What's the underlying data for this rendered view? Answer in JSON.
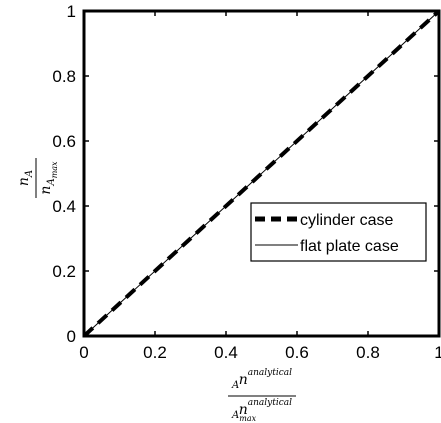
{
  "chart_data": {
    "type": "line",
    "title": "",
    "xlabel": {
      "numerator": "n",
      "numerator_sub": "A",
      "numerator_sup": "analytical",
      "denominator": "n",
      "denominator_sub": "A",
      "denominator_subsub": "max",
      "denominator_sup": "analytical"
    },
    "ylabel": {
      "numerator": "n",
      "numerator_sub": "A",
      "denominator": "n",
      "denominator_sub": "A",
      "denominator_subsub": "max"
    },
    "xlim": [
      0,
      1
    ],
    "ylim": [
      0,
      1
    ],
    "xticks": [
      "0",
      "0.2",
      "0.4",
      "0.6",
      "0.8",
      "1"
    ],
    "yticks": [
      "0",
      "0.2",
      "0.4",
      "0.6",
      "0.8",
      "1"
    ],
    "grid": false,
    "legend_position": "right",
    "series": [
      {
        "name": "cylinder case",
        "style": "dashed",
        "color": "#000000",
        "x": [
          0,
          1
        ],
        "y": [
          0,
          1
        ]
      },
      {
        "name": "flat plate case",
        "style": "solid",
        "color": "#000000",
        "x": [
          0,
          1
        ],
        "y": [
          0,
          1
        ]
      }
    ]
  }
}
